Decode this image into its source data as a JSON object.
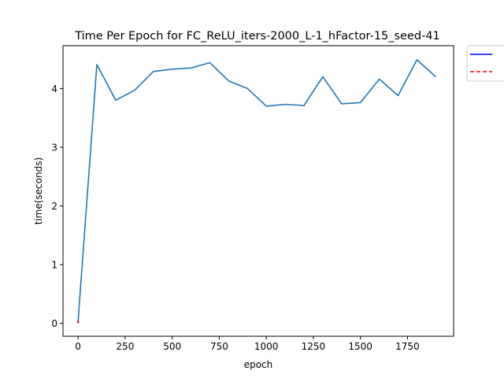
{
  "chart_data": {
    "type": "line",
    "title": "Time Per Epoch for FC_ReLU_iters-2000_L-1_hFactor-15_seed-41",
    "xlabel": "epoch",
    "ylabel": "time(seconds)",
    "xlim": [
      -80,
      1995
    ],
    "ylim": [
      -0.22,
      4.73
    ],
    "xticks": [
      0,
      250,
      500,
      750,
      1000,
      1250,
      1500,
      1750
    ],
    "yticks": [
      0,
      1,
      2,
      3,
      4
    ],
    "grid": false,
    "legend": {
      "placement": "outside-top-right",
      "entries": [
        {
          "label": "",
          "color": "#0000ff",
          "style": "solid"
        },
        {
          "label": "",
          "color": "#ff0000",
          "style": "dashed"
        }
      ]
    },
    "series": [
      {
        "color": "#1f77b4",
        "x": [
          0,
          100,
          200,
          300,
          400,
          500,
          600,
          700,
          800,
          900,
          1000,
          1100,
          1200,
          1300,
          1400,
          1500,
          1600,
          1700,
          1800,
          1900
        ],
        "y": [
          0.03,
          4.41,
          3.8,
          3.97,
          4.29,
          4.33,
          4.35,
          4.44,
          4.13,
          4.0,
          3.7,
          3.73,
          3.71,
          4.2,
          3.74,
          3.76,
          4.16,
          3.88,
          4.49,
          4.2
        ]
      },
      {
        "color": "#ff0000",
        "x": [
          0
        ],
        "y": [
          0.02
        ]
      }
    ]
  }
}
